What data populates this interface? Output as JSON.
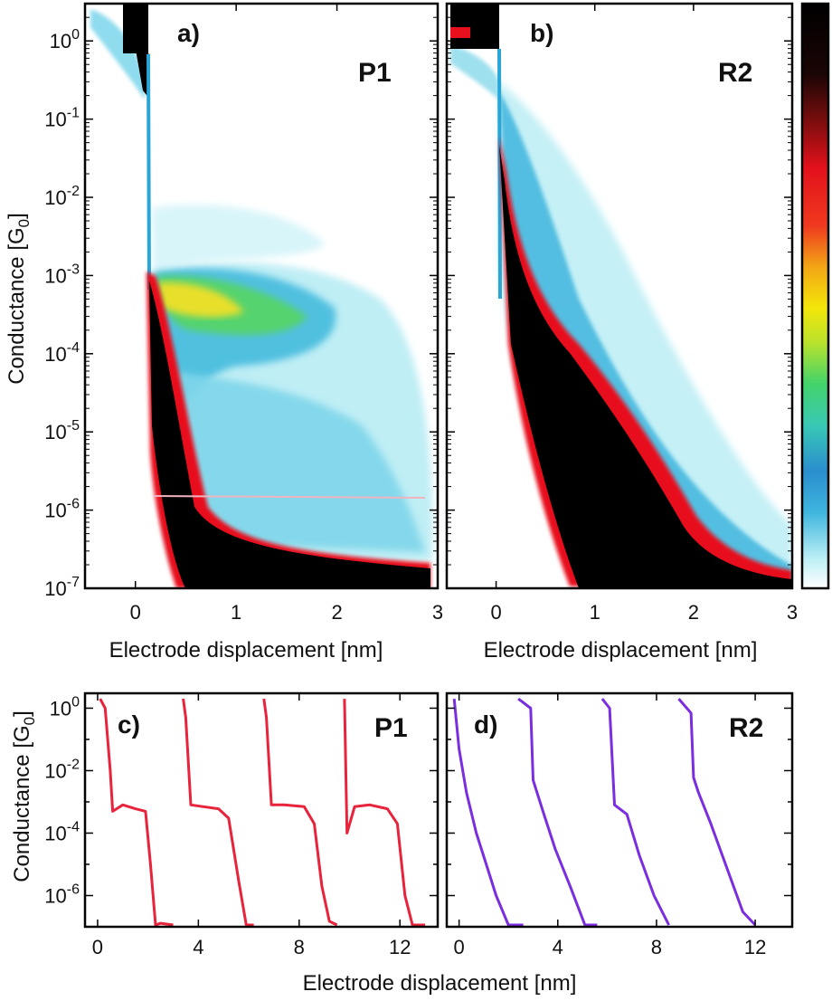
{
  "chart_data": [
    {
      "panel": "a)",
      "name": "P1",
      "type": "heatmap",
      "xlabel": "Electrode displacement [nm]",
      "ylabel": "Conductance [G0]",
      "xlim": [
        -0.5,
        3
      ],
      "ylim": [
        1e-07,
        3
      ],
      "yscale": "log",
      "xticks": [
        "0",
        "1",
        "2",
        "3"
      ],
      "yticks": [
        "10^0",
        "10^-1",
        "10^-2",
        "10^-3",
        "10^-4",
        "10^-5",
        "10^-6",
        "10^-7"
      ],
      "features": {
        "contact_break_x": 0.1,
        "plateau_range_G": [
          0.0001,
          0.001
        ],
        "plateau_end_x": 2.3,
        "noise_floor_G": 2e-07
      }
    },
    {
      "panel": "b)",
      "name": "R2",
      "type": "heatmap",
      "xlabel": "Electrode displacement [nm]",
      "xlim": [
        -0.5,
        3
      ],
      "ylim": [
        1e-07,
        3
      ],
      "yscale": "log",
      "xticks": [
        "0",
        "1",
        "2",
        "3"
      ],
      "features": {
        "contact_break_x": 0.0,
        "decay_end_x": 1.8,
        "noise_floor_G": 1.5e-07
      }
    },
    {
      "panel": "c)",
      "name": "P1",
      "type": "line",
      "xlim": [
        -0.5,
        13.5
      ],
      "ylim": [
        1e-07,
        3
      ],
      "yscale": "log",
      "xticks": [
        "0",
        "4",
        "8",
        "12"
      ],
      "yticks": [
        "10^0",
        "10^-2",
        "10^-4",
        "10^-6"
      ],
      "color": "#e8233c",
      "series": [
        {
          "x": [
            0.1,
            0.3,
            0.5,
            0.6,
            1.0,
            1.5,
            1.9,
            2.1,
            2.3,
            2.5,
            3.0
          ],
          "y": [
            2,
            1,
            0.01,
            0.0005,
            0.0008,
            0.0006,
            0.0005,
            1e-05,
            1e-07,
            1.3e-07,
            1e-07
          ]
        },
        {
          "x": [
            3.4,
            3.5,
            3.7,
            4.2,
            4.8,
            5.2,
            5.6,
            5.9,
            6.2
          ],
          "y": [
            2,
            0.5,
            0.0008,
            0.0007,
            0.0006,
            0.0003,
            3e-06,
            1e-07,
            1e-07
          ]
        },
        {
          "x": [
            6.6,
            6.7,
            6.9,
            7.4,
            8.2,
            8.6,
            8.9,
            9.2,
            9.5
          ],
          "y": [
            2,
            0.5,
            0.0008,
            0.0008,
            0.0007,
            0.0002,
            2e-06,
            1.5e-07,
            1e-07
          ]
        },
        {
          "x": [
            9.8,
            9.9,
            10.2,
            10.8,
            11.5,
            11.9,
            12.2,
            12.5,
            13.0
          ],
          "y": [
            2,
            0.0001,
            0.0007,
            0.0008,
            0.0006,
            0.0002,
            1e-06,
            1e-07,
            1e-07
          ]
        }
      ]
    },
    {
      "panel": "d)",
      "name": "R2",
      "type": "line",
      "xlim": [
        -0.5,
        13.5
      ],
      "ylim": [
        1e-07,
        3
      ],
      "yscale": "log",
      "xticks": [
        "0",
        "4",
        "8",
        "12"
      ],
      "color": "#7a2ee0",
      "series": [
        {
          "x": [
            -0.2,
            0,
            0.3,
            0.7,
            1.1,
            1.5,
            2.0,
            2.6
          ],
          "y": [
            2,
            0.05,
            0.002,
            0.0001,
            1e-05,
            1e-06,
            1e-07,
            1e-07
          ]
        },
        {
          "x": [
            2.4,
            2.9,
            3.0,
            3.4,
            3.9,
            4.5,
            5.1,
            5.6
          ],
          "y": [
            2,
            1,
            0.005,
            0.0005,
            3e-05,
            2e-06,
            1e-07,
            1e-07
          ]
        },
        {
          "x": [
            5.8,
            6.1,
            6.3,
            6.8,
            7.3,
            7.9,
            8.5
          ],
          "y": [
            2,
            1,
            0.0008,
            0.0004,
            2e-05,
            1e-06,
            1e-07
          ]
        },
        {
          "x": [
            8.9,
            9.4,
            9.5,
            9.7,
            10.2,
            10.8,
            11.5,
            12.0
          ],
          "y": [
            2,
            0.7,
            0.006,
            0.002,
            0.0002,
            1e-05,
            3e-07,
            1e-07
          ]
        }
      ]
    }
  ],
  "labels": {
    "a_letter": "a)",
    "a_name": "P1",
    "b_letter": "b)",
    "b_name": "R2",
    "c_letter": "c)",
    "c_name": "P1",
    "d_letter": "d)",
    "d_name": "R2",
    "ylabel_top": "Conductance [G",
    "ylabel_top_sub": "0",
    "ylabel_top_end": "]",
    "ylabel_bottom": "Conductance [G",
    "ylabel_bottom_sub": "0",
    "ylabel_bottom_end": "]",
    "xlabel_a": "Electrode displacement [nm]",
    "xlabel_b": "Electrode displacement [nm]",
    "xlabel_bottom": "Electrode displacement [nm]"
  },
  "colors": {
    "trace_p1": "#e8233c",
    "trace_r2": "#7a2ee0"
  }
}
